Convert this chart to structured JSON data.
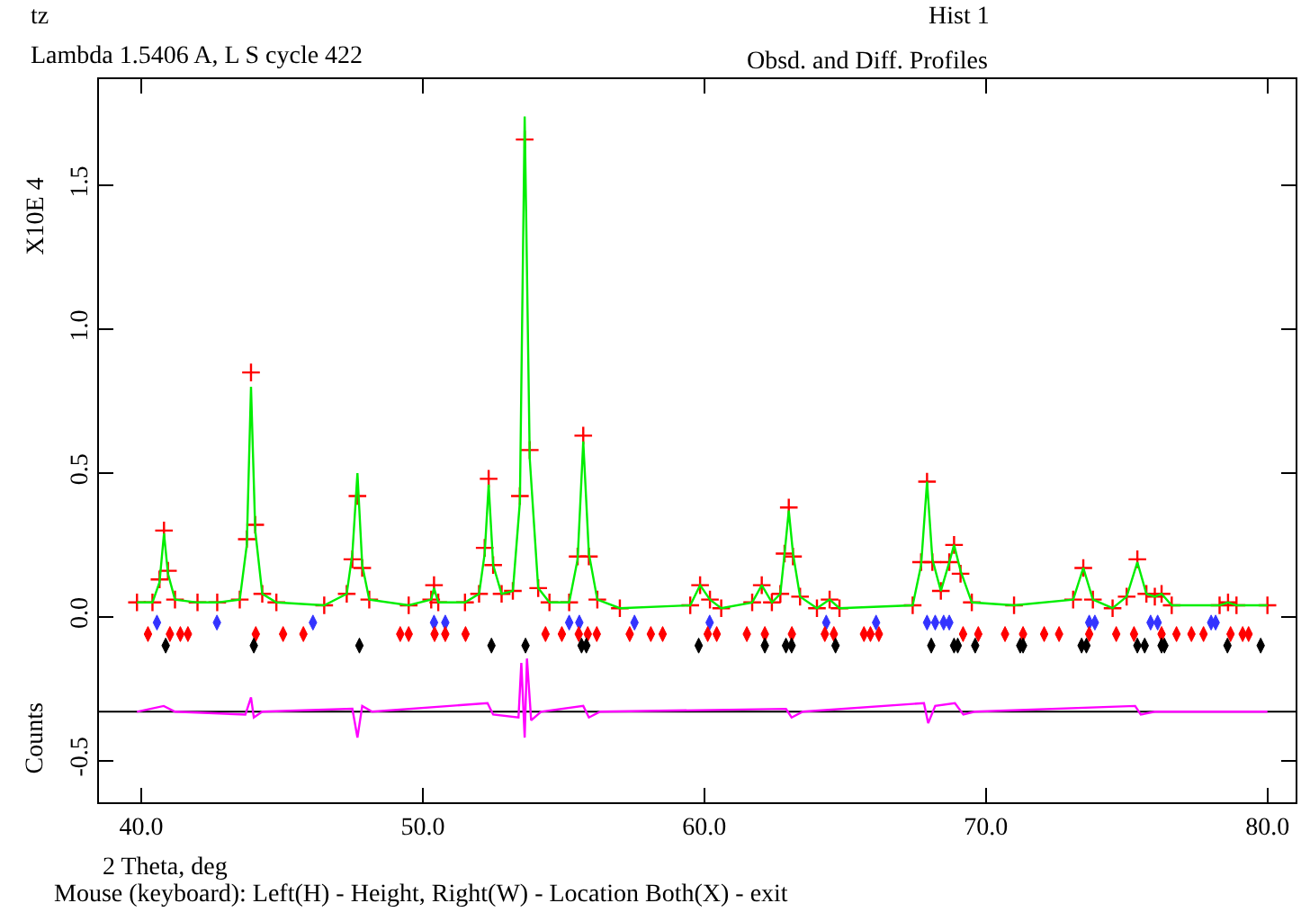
{
  "chart_data": {
    "type": "line",
    "title": "Obsd. and Diff. Profiles",
    "subtitle": "Hist 1",
    "xlabel": "2 Theta, deg",
    "ylabel": "Counts",
    "annotations": [
      "tz",
      "Lambda 1.5406 A, L S cycle 422",
      "X10E 4",
      "Mouse (keyboard): Left(H) - Height, Right(W) - Location Both(X) - exit"
    ],
    "xlim": [
      38.5,
      81.0
    ],
    "xticks": [
      {
        "value": 40,
        "label": "40.0"
      },
      {
        "value": 50,
        "label": "50.0"
      },
      {
        "value": 60,
        "label": "60.0"
      },
      {
        "value": 70,
        "label": "70.0"
      },
      {
        "value": 80,
        "label": "80.0"
      }
    ],
    "ylim": [
      -0.645,
      1.87
    ],
    "yticks": [
      {
        "value": -0.5,
        "label": "-0.5"
      },
      {
        "value": 0,
        "label": "0.0"
      },
      {
        "value": 0.5,
        "label": "0.5"
      },
      {
        "value": 1,
        "label": "1.0"
      },
      {
        "value": 1.5,
        "label": "1.5"
      }
    ],
    "grid": false,
    "ref_lines": [
      {
        "axis": "y",
        "value": -0.33,
        "color": "#000000"
      }
    ],
    "series": [
      {
        "type": "scatter",
        "marker": "cross",
        "color": "#ff0000",
        "x": [
          39.85,
          40.4,
          40.65,
          40.81,
          40.95,
          41.2,
          42.0,
          42.7,
          43.5,
          43.75,
          43.9,
          44.05,
          44.3,
          44.8,
          46.5,
          47.3,
          47.5,
          47.68,
          47.85,
          48.1,
          49.5,
          50.3,
          50.4,
          50.55,
          51.5,
          52.0,
          52.2,
          52.34,
          52.5,
          52.8,
          53.2,
          53.45,
          53.62,
          53.8,
          54.1,
          54.5,
          55.2,
          55.5,
          55.7,
          55.9,
          56.2,
          57.0,
          59.5,
          59.85,
          60.2,
          60.6,
          61.7,
          62.04,
          62.4,
          62.7,
          62.85,
          63.0,
          63.15,
          63.4,
          64.0,
          64.45,
          64.8,
          67.4,
          67.7,
          67.91,
          68.1,
          68.4,
          68.7,
          68.87,
          69.1,
          69.5,
          71.0,
          73.1,
          73.46,
          73.8,
          74.5,
          75.0,
          75.38,
          75.7,
          76.0,
          76.24,
          76.6,
          78.3,
          78.6,
          78.9,
          80.0
        ],
        "values": [
          0.05,
          0.05,
          0.13,
          0.3,
          0.16,
          0.06,
          0.05,
          0.05,
          0.06,
          0.27,
          0.85,
          0.32,
          0.08,
          0.05,
          0.04,
          0.08,
          0.2,
          0.42,
          0.17,
          0.06,
          0.04,
          0.06,
          0.11,
          0.05,
          0.05,
          0.08,
          0.24,
          0.48,
          0.18,
          0.08,
          0.09,
          0.42,
          1.66,
          0.58,
          0.1,
          0.05,
          0.05,
          0.21,
          0.63,
          0.21,
          0.06,
          0.03,
          0.04,
          0.11,
          0.06,
          0.03,
          0.05,
          0.11,
          0.05,
          0.08,
          0.22,
          0.38,
          0.21,
          0.07,
          0.03,
          0.06,
          0.03,
          0.04,
          0.19,
          0.47,
          0.19,
          0.09,
          0.19,
          0.25,
          0.15,
          0.05,
          0.04,
          0.06,
          0.17,
          0.06,
          0.03,
          0.07,
          0.2,
          0.08,
          0.07,
          0.08,
          0.04,
          0.04,
          0.05,
          0.04,
          0.04
        ]
      },
      {
        "type": "line",
        "marker": "none",
        "color": "#00ee00",
        "x": [
          39.85,
          40.4,
          40.65,
          40.81,
          40.95,
          41.2,
          42.0,
          42.7,
          43.5,
          43.75,
          43.9,
          44.05,
          44.3,
          44.8,
          46.5,
          47.3,
          47.5,
          47.68,
          47.85,
          48.1,
          49.5,
          50.3,
          50.4,
          50.55,
          51.5,
          52.0,
          52.2,
          52.34,
          52.5,
          52.8,
          53.2,
          53.45,
          53.62,
          53.8,
          54.1,
          54.5,
          55.2,
          55.5,
          55.7,
          55.9,
          56.2,
          57.0,
          59.5,
          59.85,
          60.2,
          60.6,
          61.7,
          62.04,
          62.4,
          62.7,
          62.85,
          63.0,
          63.15,
          63.4,
          64.0,
          64.45,
          64.8,
          67.4,
          67.7,
          67.91,
          68.1,
          68.4,
          68.7,
          68.87,
          69.1,
          69.5,
          71.0,
          73.1,
          73.46,
          73.8,
          74.5,
          75.0,
          75.38,
          75.7,
          76.0,
          76.24,
          76.6,
          78.3,
          78.6,
          78.9,
          80.0
        ],
        "values": [
          0.05,
          0.05,
          0.12,
          0.29,
          0.15,
          0.06,
          0.05,
          0.05,
          0.06,
          0.25,
          0.8,
          0.3,
          0.08,
          0.05,
          0.04,
          0.08,
          0.22,
          0.5,
          0.18,
          0.06,
          0.04,
          0.06,
          0.1,
          0.05,
          0.05,
          0.08,
          0.22,
          0.46,
          0.18,
          0.08,
          0.09,
          0.4,
          1.74,
          0.55,
          0.1,
          0.05,
          0.05,
          0.2,
          0.61,
          0.22,
          0.06,
          0.03,
          0.04,
          0.11,
          0.06,
          0.03,
          0.05,
          0.11,
          0.05,
          0.08,
          0.22,
          0.37,
          0.22,
          0.07,
          0.03,
          0.06,
          0.03,
          0.04,
          0.18,
          0.47,
          0.2,
          0.09,
          0.19,
          0.25,
          0.16,
          0.05,
          0.04,
          0.06,
          0.17,
          0.06,
          0.03,
          0.07,
          0.19,
          0.08,
          0.07,
          0.08,
          0.04,
          0.04,
          0.05,
          0.04,
          0.04
        ]
      },
      {
        "type": "line",
        "marker": "none",
        "color": "#ff00ff",
        "x": [
          39.85,
          40.8,
          41.2,
          43.7,
          43.9,
          44.0,
          44.3,
          47.5,
          47.68,
          47.85,
          48.2,
          52.3,
          52.5,
          53.4,
          53.5,
          53.62,
          53.7,
          53.85,
          54.2,
          55.7,
          55.9,
          56.3,
          62.9,
          63.1,
          63.5,
          67.8,
          67.95,
          68.2,
          68.9,
          69.2,
          69.6,
          75.3,
          75.5,
          76.0,
          80.0
        ],
        "values": [
          -0.33,
          -0.31,
          -0.33,
          -0.34,
          -0.28,
          -0.35,
          -0.33,
          -0.32,
          -0.42,
          -0.31,
          -0.33,
          -0.3,
          -0.34,
          -0.35,
          -0.16,
          -0.42,
          -0.145,
          -0.36,
          -0.33,
          -0.31,
          -0.35,
          -0.33,
          -0.32,
          -0.35,
          -0.33,
          -0.3,
          -0.37,
          -0.31,
          -0.3,
          -0.34,
          -0.33,
          -0.31,
          -0.34,
          -0.33,
          -0.33
        ]
      },
      {
        "type": "scatter",
        "marker": "diamond",
        "color": "#3333ff",
        "x": [
          40.56,
          42.69,
          46.1,
          50.4,
          50.8,
          55.2,
          55.56,
          57.52,
          60.19,
          64.33,
          66.1,
          67.91,
          68.2,
          68.5,
          68.7,
          73.67,
          73.87,
          75.85,
          76.1,
          78.0,
          78.16
        ],
        "values": [
          -0.02,
          -0.02,
          -0.02,
          -0.02,
          -0.02,
          -0.02,
          -0.02,
          -0.02,
          -0.02,
          -0.02,
          -0.02,
          -0.02,
          -0.02,
          -0.02,
          -0.02,
          -0.02,
          -0.02,
          -0.02,
          -0.02,
          -0.02,
          -0.02
        ]
      },
      {
        "type": "scatter",
        "marker": "diamond",
        "color": "#ff0000",
        "x": [
          40.24,
          41.02,
          41.39,
          41.66,
          44.07,
          45.04,
          45.76,
          49.2,
          49.5,
          50.42,
          50.8,
          51.52,
          54.36,
          54.94,
          55.54,
          55.86,
          56.18,
          57.35,
          58.1,
          58.52,
          60.12,
          60.44,
          61.51,
          62.15,
          63.11,
          64.28,
          64.6,
          65.67,
          65.9,
          66.2,
          69.19,
          69.73,
          70.68,
          71.32,
          72.07,
          72.6,
          73.67,
          74.63,
          75.26,
          76.24,
          76.77,
          77.3,
          77.73,
          78.69,
          79.12,
          79.33
        ],
        "values": [
          -0.06,
          -0.06,
          -0.06,
          -0.06,
          -0.06,
          -0.06,
          -0.06,
          -0.06,
          -0.06,
          -0.06,
          -0.06,
          -0.06,
          -0.06,
          -0.06,
          -0.06,
          -0.06,
          -0.06,
          -0.06,
          -0.06,
          -0.06,
          -0.06,
          -0.06,
          -0.06,
          -0.06,
          -0.06,
          -0.06,
          -0.06,
          -0.06,
          -0.06,
          -0.06,
          -0.06,
          -0.06,
          -0.06,
          -0.06,
          -0.06,
          -0.06,
          -0.06,
          -0.06,
          -0.06,
          -0.06,
          -0.06,
          -0.06,
          -0.06,
          -0.06,
          -0.06,
          -0.06
        ]
      },
      {
        "type": "scatter",
        "marker": "diamond",
        "color": "#000000",
        "x": [
          40.87,
          44.0,
          47.75,
          52.44,
          53.65,
          55.64,
          55.81,
          59.8,
          62.15,
          62.9,
          63.1,
          64.66,
          68.06,
          68.87,
          69.0,
          69.62,
          71.22,
          71.32,
          73.4,
          73.57,
          75.38,
          75.64,
          76.24,
          76.34,
          78.58,
          79.76
        ],
        "values": [
          -0.1,
          -0.1,
          -0.1,
          -0.1,
          -0.1,
          -0.1,
          -0.1,
          -0.1,
          -0.1,
          -0.1,
          -0.1,
          -0.1,
          -0.1,
          -0.1,
          -0.1,
          -0.1,
          -0.1,
          -0.1,
          -0.1,
          -0.1,
          -0.1,
          -0.1,
          -0.1,
          -0.1,
          -0.1,
          -0.1
        ]
      }
    ]
  }
}
